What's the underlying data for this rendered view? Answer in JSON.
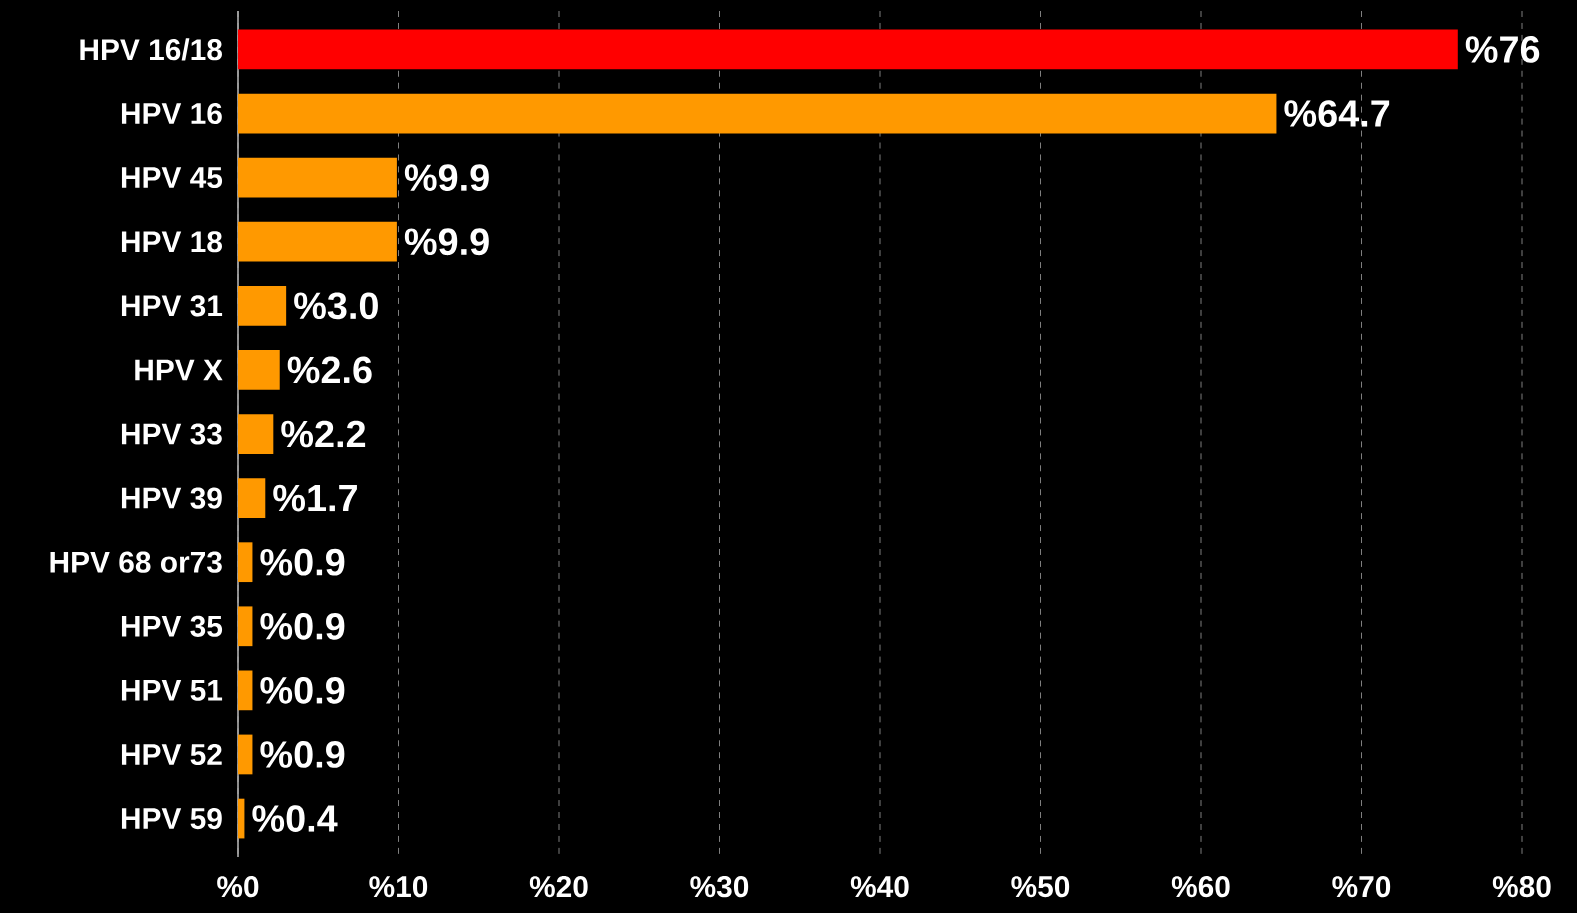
{
  "chart_data": {
    "type": "bar",
    "orientation": "horizontal",
    "categories": [
      "HPV 16/18",
      "HPV 16",
      "HPV 45",
      "HPV 18",
      "HPV 31",
      "HPV X",
      "HPV 33",
      "HPV 39",
      "HPV 68 or73",
      "HPV 35",
      "HPV 51",
      "HPV 52",
      "HPV 59"
    ],
    "values": [
      76,
      64.7,
      9.9,
      9.9,
      3.0,
      2.6,
      2.2,
      1.7,
      0.9,
      0.9,
      0.9,
      0.9,
      0.4
    ],
    "colors": [
      "#ff0000",
      "#ff9900",
      "#ff9900",
      "#ff9900",
      "#ff9900",
      "#ff9900",
      "#ff9900",
      "#ff9900",
      "#ff9900",
      "#ff9900",
      "#ff9900",
      "#ff9900",
      "#ff9900"
    ],
    "value_labels": [
      "%76",
      "%64.7",
      "%9.9",
      "%9.9",
      "%3.0",
      "%2.6",
      "%2.2",
      "%1.7",
      "%0.9",
      "%0.9",
      "%0.9",
      "%0.9",
      "%0.4"
    ],
    "xlim": [
      0,
      80
    ],
    "xticks": [
      {
        "value": 0,
        "label": "%0"
      },
      {
        "value": 10,
        "label": "%10"
      },
      {
        "value": 20,
        "label": "%20"
      },
      {
        "value": 30,
        "label": "%30"
      },
      {
        "value": 40,
        "label": "%40"
      },
      {
        "value": 50,
        "label": "%50"
      },
      {
        "value": 60,
        "label": "%60"
      },
      {
        "value": 70,
        "label": "%70"
      },
      {
        "value": 80,
        "label": "%80"
      }
    ],
    "grid": "x"
  }
}
